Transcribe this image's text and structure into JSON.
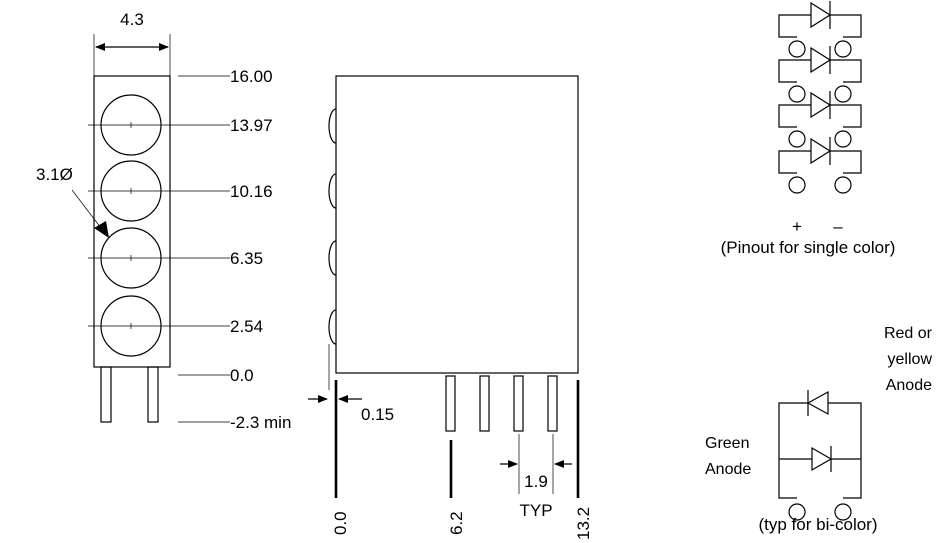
{
  "front_view": {
    "width_dim": "4.3",
    "diameter_dim": "3.1Ø",
    "heights": [
      "16.00",
      "13.97",
      "10.16",
      "6.35",
      "2.54",
      "0.0"
    ],
    "lead_length": "-2.3 min"
  },
  "side_view": {
    "offset_dim": "0.15",
    "x_positions": [
      "0.0",
      "6.2",
      "13.2"
    ],
    "pitch_dim": "1.9",
    "pitch_note": "TYP"
  },
  "single_color": {
    "plus": "+",
    "minus": "–",
    "caption": "(Pinout for single color)"
  },
  "bi_color": {
    "red_label_1": "Red or",
    "red_label_2": "yellow",
    "red_label_3": "Anode",
    "green_label_1": "Green",
    "green_label_2": "Anode",
    "caption": "(typ for bi-color)"
  }
}
